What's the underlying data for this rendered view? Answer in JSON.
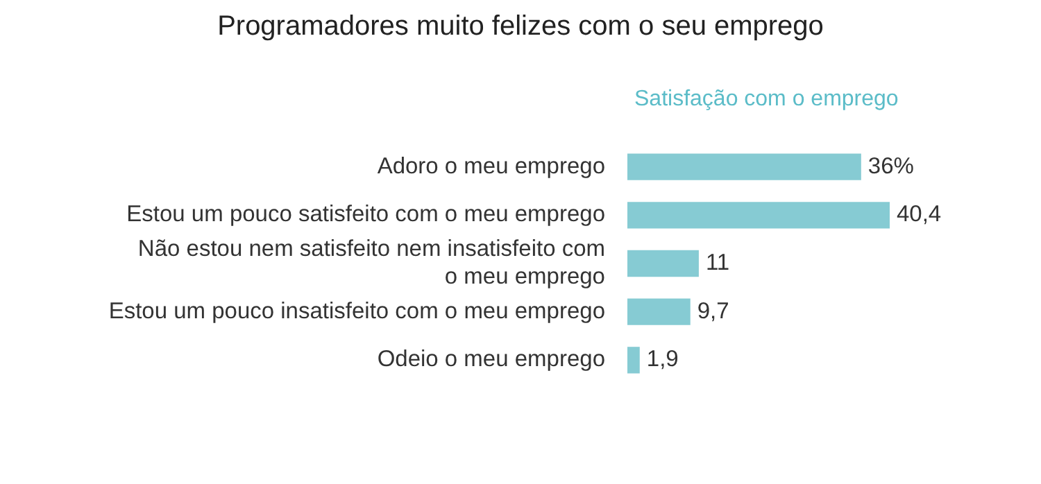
{
  "chart_data": {
    "type": "bar",
    "orientation": "horizontal",
    "title": "Programadores muito felizes com o seu emprego",
    "subtitle": "Satisfação com o emprego",
    "categories": [
      "Adoro o meu emprego",
      "Estou um pouco satisfeito com o meu emprego",
      "Não estou nem satisfeito nem insatisfeito com o meu emprego",
      "Estou um pouco insatisfeito com o meu emprego",
      "Odeio o meu emprego"
    ],
    "values": [
      36,
      40.4,
      11,
      9.7,
      1.9
    ],
    "value_labels": [
      "36%",
      "40,4",
      "11",
      "9,7",
      "1,9"
    ],
    "color": "#86cbd3",
    "legend": false
  }
}
